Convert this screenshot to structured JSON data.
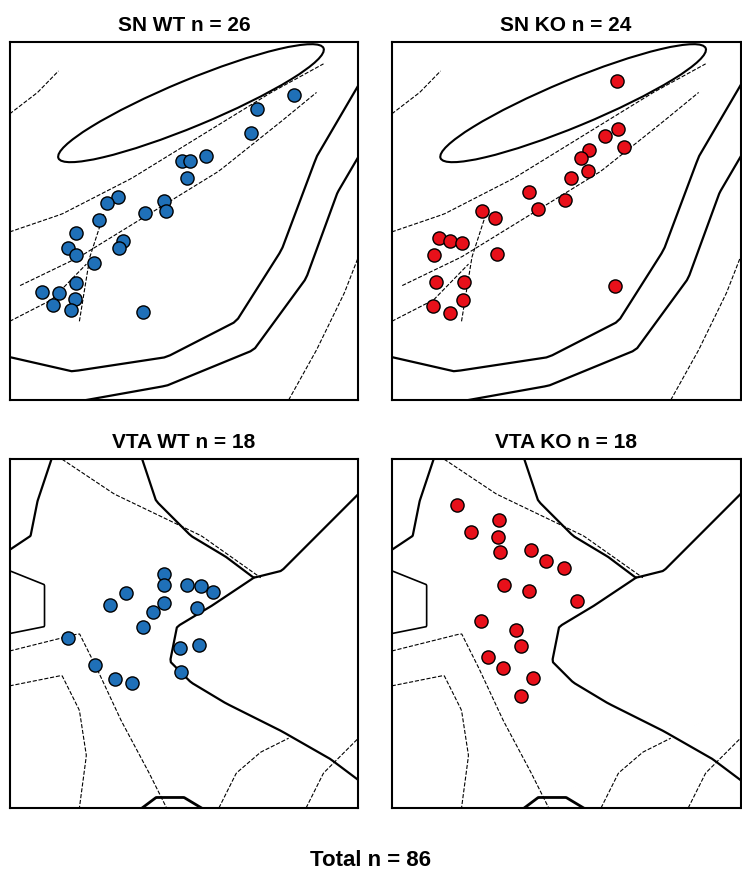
{
  "chart_data": [
    {
      "type": "scatter",
      "title": "SN WT n = 26",
      "color": "#1f70b8",
      "marker": "o",
      "xlim": [
        0,
        100
      ],
      "ylim": [
        0,
        100
      ],
      "tick_labels": false,
      "x": [
        81.5,
        70.9,
        69.3,
        49.5,
        51.6,
        56.3,
        50.8,
        31.0,
        28.0,
        25.5,
        19.0,
        44.3,
        44.8,
        38.9,
        32.6,
        31.5,
        16.6,
        19.0,
        24.2,
        19.0,
        9.2,
        14.1,
        12.5,
        18.8,
        17.7,
        38.3
      ],
      "values": [
        85.3,
        81.4,
        74.7,
        66.7,
        66.9,
        68.1,
        62.2,
        56.9,
        55.0,
        50.3,
        46.7,
        55.6,
        52.8,
        52.2,
        44.4,
        42.5,
        42.5,
        40.6,
        38.3,
        32.8,
        30.3,
        30.0,
        26.7,
        28.3,
        25.3,
        24.7
      ]
    },
    {
      "type": "scatter",
      "title": "SN KO n = 24",
      "color": "#e8101a",
      "marker": "o",
      "xlim": [
        0,
        100
      ],
      "ylim": [
        0,
        100
      ],
      "tick_labels": false,
      "x": [
        64.7,
        64.9,
        61.1,
        66.6,
        56.5,
        54.3,
        56.3,
        51.4,
        49.7,
        39.4,
        41.8,
        25.8,
        29.6,
        13.6,
        16.8,
        20.1,
        12.2,
        30.2,
        12.8,
        20.7,
        20.4,
        11.7,
        16.6,
        64.1
      ],
      "values": [
        89.2,
        75.8,
        73.9,
        70.8,
        70.0,
        67.8,
        63.9,
        62.2,
        55.8,
        58.3,
        53.3,
        52.8,
        50.8,
        45.3,
        44.4,
        43.9,
        40.6,
        40.8,
        33.1,
        33.1,
        28.1,
        26.4,
        24.4,
        31.9
      ]
    },
    {
      "type": "scatter",
      "title": "VTA WT n = 18",
      "color": "#1f70b8",
      "marker": "o",
      "xlim": [
        0,
        100
      ],
      "ylim": [
        0,
        100
      ],
      "tick_labels": false,
      "x": [
        44.3,
        33.4,
        28.8,
        44.3,
        50.8,
        54.9,
        58.2,
        44.3,
        53.8,
        41.0,
        38.3,
        16.6,
        48.9,
        54.3,
        49.2,
        24.5,
        30.2,
        35.1
      ],
      "values": [
        67.2,
        61.7,
        58.1,
        63.9,
        63.9,
        63.6,
        61.9,
        58.9,
        57.2,
        56.1,
        51.9,
        48.6,
        45.8,
        46.7,
        38.9,
        41.1,
        36.9,
        35.8
      ]
    },
    {
      "type": "scatter",
      "title": "VTA KO n = 18",
      "color": "#e8101a",
      "marker": "o",
      "xlim": [
        0,
        100
      ],
      "ylim": [
        0,
        100
      ],
      "tick_labels": false,
      "x": [
        18.8,
        22.6,
        30.7,
        30.4,
        31.0,
        39.9,
        44.3,
        49.5,
        32.3,
        39.4,
        53.0,
        25.5,
        35.6,
        37.0,
        27.7,
        31.8,
        40.5,
        37.0
      ],
      "values": [
        86.9,
        79.2,
        82.5,
        77.8,
        73.3,
        73.9,
        70.8,
        68.9,
        63.9,
        62.2,
        59.4,
        53.6,
        51.1,
        46.4,
        43.3,
        40.0,
        37.2,
        32.2
      ]
    }
  ],
  "caption": "Total n = 86"
}
